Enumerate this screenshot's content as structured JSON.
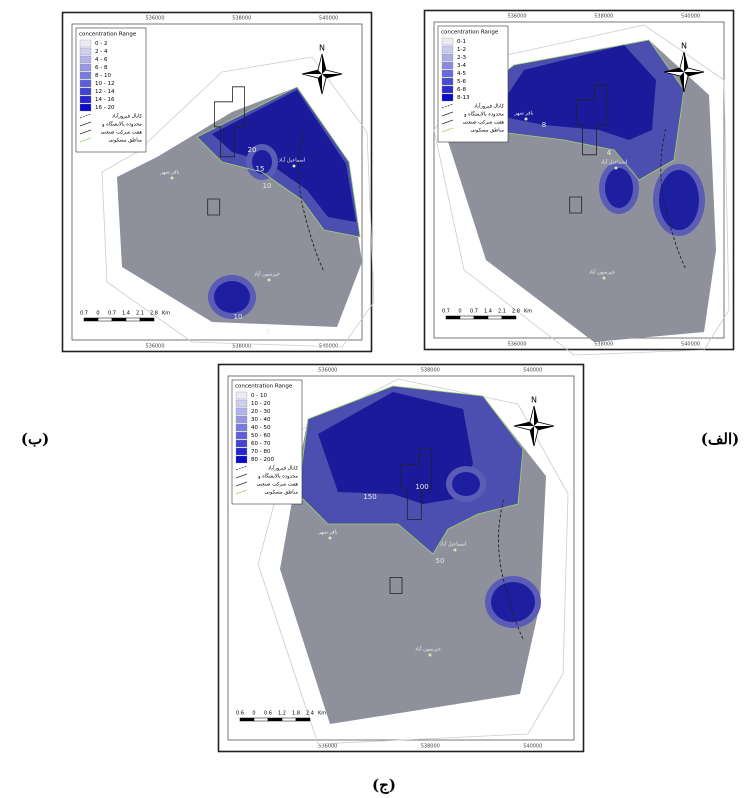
{
  "panels": [
    {
      "label": "(ب)",
      "legend_title": "concentration Range",
      "legend_ranges": [
        "0 - 2",
        "2 - 4",
        "4 - 6",
        "6 - 8",
        "8 - 10",
        "10 - 12",
        "12 - 14",
        "14 - 16",
        "16 - 20"
      ],
      "legend_items": [
        "کانال فیروزآباد",
        "محدوده پالایشگاه و",
        "هفت شرکت صنعتی",
        "مناطق مسکونی"
      ],
      "north": "N",
      "places": [
        "باقر شهر",
        "اسماعیل آباد",
        "خیرسون آباد"
      ],
      "contour_labels": [
        "20",
        "15",
        "10",
        "10",
        "5"
      ],
      "scale_labels": [
        "0.7",
        "0",
        "0.7",
        "1.4",
        "2.1",
        "2.8",
        "Km"
      ],
      "coordinates": [
        "536000",
        "538000",
        "540000"
      ]
    },
    {
      "label": "(الف)",
      "legend_title": "concentration Range",
      "legend_ranges": [
        "0-1",
        "1-2",
        "2-3",
        "3-4",
        "4-5",
        "5-6",
        "6-8",
        "8-13"
      ],
      "legend_items": [
        "کانال فیروزآباد",
        "محدوده پالایشگاه و",
        "هفت شرکت صنعتی",
        "مناطق مسکونی"
      ],
      "north": "N",
      "places": [
        "باقر شهر",
        "اسماعیل آباد",
        "خیرسون آباد"
      ],
      "contour_labels": [
        "8",
        "4"
      ],
      "scale_labels": [
        "0.7",
        "0",
        "0.7",
        "1.4",
        "2.1",
        "2.8",
        "Km"
      ],
      "coordinates": [
        "536000",
        "538000",
        "540000"
      ]
    },
    {
      "label": "(ج)",
      "legend_title": "concentration Range",
      "legend_ranges": [
        "0 - 10",
        "10 - 20",
        "20 - 30",
        "30 - 40",
        "40 - 50",
        "50 - 60",
        "60 - 70",
        "70 - 80",
        "80 - 200"
      ],
      "legend_items": [
        "کانال فیروزآباد",
        "محدوده پالایشگاه و",
        "هفت شرکت صنعتی",
        "مناطق مسکونی"
      ],
      "north": "N",
      "places": [
        "باقر شهر",
        "اسماعیل آباد",
        "خیرسون آباد"
      ],
      "contour_labels": [
        "150",
        "100",
        "50"
      ],
      "scale_labels": [
        "0.6",
        "0",
        "0.6",
        "1.2",
        "1.8",
        "2.4",
        "Km"
      ],
      "coordinates": [
        "536000",
        "538000",
        "540000"
      ]
    }
  ]
}
